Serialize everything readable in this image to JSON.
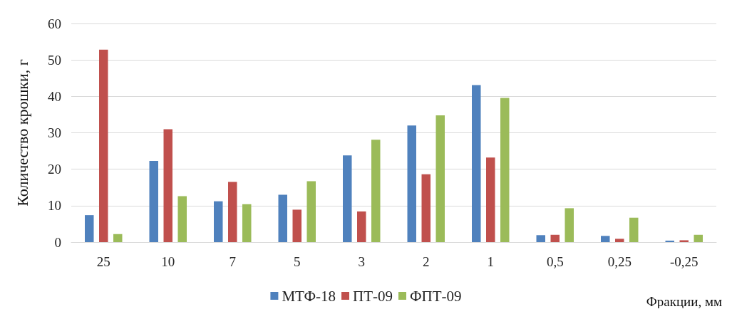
{
  "chart_data": {
    "type": "bar",
    "xlabel": "Фракции, мм",
    "ylabel": "Количество крошки, г",
    "categories": [
      "25",
      "10",
      "7",
      "5",
      "3",
      "2",
      "1",
      "0,5",
      "0,25",
      "-0,25"
    ],
    "series": [
      {
        "name": "МТФ-18",
        "color": "#4f81bd",
        "values": [
          7.4,
          22.3,
          11.2,
          13,
          23.8,
          32,
          43.1,
          1.9,
          1.7,
          0.4
        ]
      },
      {
        "name": "ПТ-09",
        "color": "#c0504d",
        "values": [
          52.8,
          31,
          16.5,
          8.9,
          8.4,
          18.6,
          23.2,
          2,
          0.9,
          0.5
        ]
      },
      {
        "name": "ФПТ-09",
        "color": "#9bbb59",
        "values": [
          2.2,
          12.6,
          10.4,
          16.7,
          28.1,
          34.8,
          39.6,
          9.3,
          6.7,
          2
        ]
      }
    ],
    "ylim": [
      0,
      60
    ],
    "yticks": [
      0,
      10,
      20,
      30,
      40,
      50,
      60
    ],
    "grid": "y",
    "legend": "bottom"
  }
}
